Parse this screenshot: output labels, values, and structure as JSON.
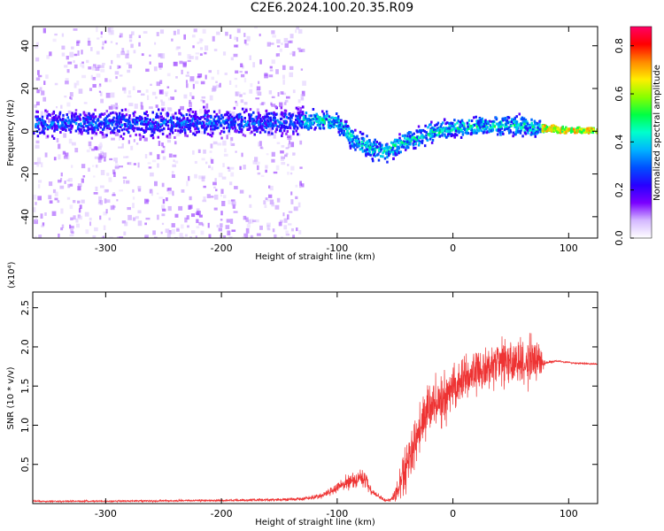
{
  "title": "C2E6.2024.100.20.35.R09",
  "colors": {
    "snr_line": "#ee3333",
    "axis": "#000000",
    "colormap": [
      "#ffffff",
      "#d4b8ff",
      "#7a00ff",
      "#2800ff",
      "#0050ff",
      "#00b4ff",
      "#00ffcc",
      "#00ff44",
      "#88ff00",
      "#ffee00",
      "#ff8800",
      "#ff0000",
      "#ff0066"
    ]
  },
  "chart_data": [
    {
      "type": "heatmap",
      "title": "C2E6.2024.100.20.35.R09",
      "xlabel": "Height of straight line (km)",
      "ylabel": "Frequency (Hz)",
      "xlim": [
        -363,
        125
      ],
      "ylim": [
        -50,
        49
      ],
      "x_ticks": [
        -300,
        -200,
        -100,
        0,
        100
      ],
      "x_tick_labels": [
        "-300",
        "-200",
        "-100",
        "0",
        "100"
      ],
      "y_ticks": [
        40,
        20,
        0,
        -20,
        -40
      ],
      "y_tick_labels": [
        "40",
        "20",
        "0",
        "-20",
        "-40"
      ],
      "colorbar": {
        "label": "Normalized spectral amplitude",
        "range": [
          0.0,
          0.88
        ],
        "ticks": [
          0.0,
          0.2,
          0.4,
          0.6,
          0.8
        ],
        "tick_labels": [
          "0.0",
          "0.2",
          "0.4",
          "0.6",
          "0.8"
        ]
      },
      "centerline": {
        "x": [
          -363,
          -140,
          -120,
          -100,
          -85,
          -70,
          -60,
          -50,
          -40,
          -30,
          -20,
          -10,
          0,
          20,
          40,
          60,
          75,
          100,
          125
        ],
        "y": [
          4,
          5,
          6,
          4,
          -4,
          -8,
          -9,
          -6,
          -4,
          -2,
          0,
          1,
          2,
          3,
          3,
          3,
          2,
          1,
          1
        ]
      },
      "grid": false
    },
    {
      "type": "line",
      "xlabel": "Height of straight line (km)",
      "ylabel": "SNR (10 * v/v)",
      "y_multiplier": "(x10⁴)",
      "xlim": [
        -363,
        125
      ],
      "ylim": [
        0,
        27000
      ],
      "x_ticks": [
        -300,
        -200,
        -100,
        0,
        100
      ],
      "x_tick_labels": [
        "-300",
        "-200",
        "-100",
        "0",
        "100"
      ],
      "y_ticks": [
        5000,
        10000,
        15000,
        20000,
        25000
      ],
      "y_tick_labels": [
        "0.5",
        "1.0",
        "1.5",
        "2.0",
        "2.5"
      ],
      "series": [
        {
          "envelope_x": [
            -363,
            -300,
            -200,
            -150,
            -130,
            -120,
            -110,
            -100,
            -90,
            -80,
            -75,
            -70,
            -65,
            -60,
            -55,
            -50,
            -45,
            -40,
            -35,
            -30,
            -25,
            -20,
            -10,
            0,
            10,
            20,
            30,
            40,
            50,
            60,
            70,
            75,
            80,
            90,
            100,
            110,
            125
          ],
          "envelope_mean": [
            300,
            300,
            400,
            500,
            600,
            800,
            1200,
            2000,
            2800,
            3200,
            3000,
            1500,
            1000,
            500,
            400,
            1000,
            2500,
            5000,
            7000,
            9000,
            10500,
            12000,
            13000,
            15000,
            16000,
            17000,
            17500,
            18000,
            18000,
            18000,
            18000,
            18000,
            18000,
            18200,
            18000,
            17900,
            17800
          ],
          "envelope_amp": [
            150,
            150,
            200,
            250,
            300,
            400,
            600,
            1000,
            1300,
            1500,
            1500,
            800,
            500,
            300,
            300,
            1500,
            3000,
            4500,
            5000,
            5000,
            5000,
            4500,
            4500,
            4000,
            4000,
            4000,
            4000,
            4000,
            4200,
            4500,
            4500,
            4000,
            300,
            200,
            150,
            150,
            150
          ]
        }
      ],
      "grid": false
    }
  ]
}
